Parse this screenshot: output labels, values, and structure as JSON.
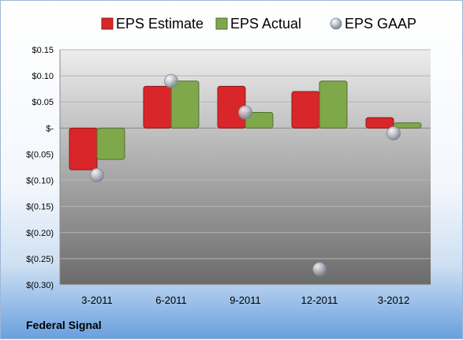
{
  "footer": {
    "company": "Federal Signal"
  },
  "chart_data": {
    "type": "bar",
    "categories": [
      "3-2011",
      "6-2011",
      "9-2011",
      "12-2011",
      "3-2012"
    ],
    "series": [
      {
        "name": "EPS Estimate",
        "color": "#d9262a",
        "values": [
          -0.08,
          0.08,
          0.08,
          0.07,
          0.02
        ]
      },
      {
        "name": "EPS Actual",
        "color": "#7fa84a",
        "values": [
          -0.06,
          0.09,
          0.03,
          0.09,
          0.01
        ]
      },
      {
        "name": "EPS GAAP",
        "color": "#c5ccd6",
        "marker": "sphere",
        "values": [
          -0.09,
          0.09,
          0.03,
          -0.27,
          -0.01
        ]
      }
    ],
    "yticks": [
      {
        "value": 0.15,
        "label": "$0.15"
      },
      {
        "value": 0.1,
        "label": "$0.10"
      },
      {
        "value": 0.05,
        "label": "$0.05"
      },
      {
        "value": 0,
        "label": "$-"
      },
      {
        "value": -0.05,
        "label": "$(0.05)"
      },
      {
        "value": -0.1,
        "label": "$(0.10)"
      },
      {
        "value": -0.15,
        "label": "$(0.15)"
      },
      {
        "value": -0.2,
        "label": "$(0.20)"
      },
      {
        "value": -0.25,
        "label": "$(0.25)"
      },
      {
        "value": -0.3,
        "label": "$(0.30)"
      }
    ],
    "ylim": [
      -0.3,
      0.15
    ],
    "grid": true,
    "legend_position": "top"
  }
}
